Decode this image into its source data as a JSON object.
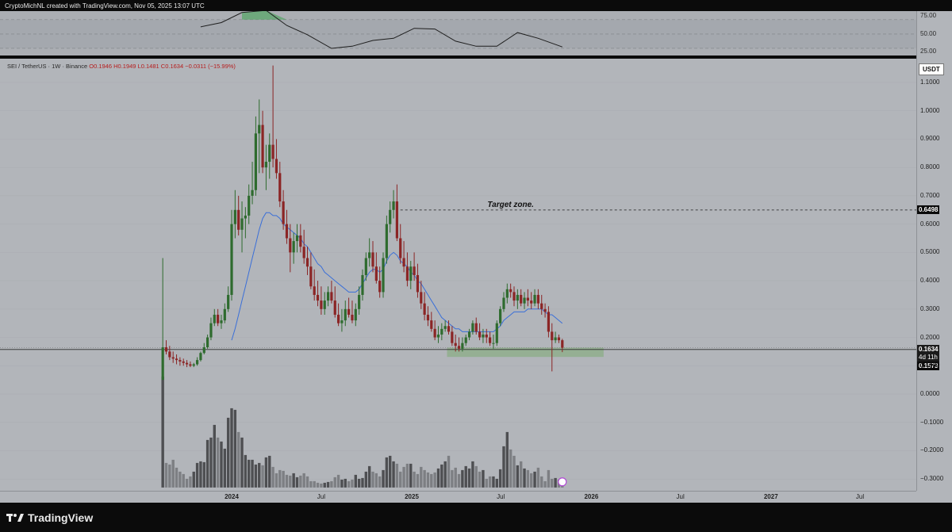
{
  "header": {
    "attribution": "CryptoMichNL created with TradingView.com, Nov 05, 2025 13:07 UTC"
  },
  "legend": {
    "symbol": "SEI / TetherUS · 1W · Binance",
    "o": "O0.1946",
    "h": "H0.1949",
    "l": "L0.1481",
    "c": "C0.1634",
    "chg": "−0.0311 (−15.99%)"
  },
  "currency_button": "USDT",
  "price_axis_ticks": [
    "1.1000",
    "1.0000",
    "0.9000",
    "0.8000",
    "0.7000",
    "0.6000",
    "0.5000",
    "0.4000",
    "0.3000",
    "0.2000",
    "0.1000",
    "0.0000",
    "−0.1000",
    "−0.2000",
    "−0.3000"
  ],
  "rsi_axis_ticks": [
    "75.00",
    "50.00",
    "25.00"
  ],
  "time_axis_ticks": [
    "2024",
    "Jul",
    "2025",
    "Jul",
    "2026",
    "Jul",
    "2027",
    "Jul"
  ],
  "tags": {
    "target": "0.6498",
    "last_price": "0.1634",
    "countdown": "4d 11h",
    "support": "0.1573"
  },
  "annotation": "Target zone.",
  "footer": {
    "brand": "TradingView"
  },
  "colors": {
    "bull": "#2e6b2e",
    "bear": "#8b2525",
    "ma": "#3a6fd8",
    "zone": "#8fae8c",
    "background": "#b2b5ba"
  },
  "chart_data": [
    {
      "type": "candlestick",
      "title": "SEI / TetherUS · 1W · Binance",
      "x": [
        "2023-08-14",
        "2023-08-21",
        "2023-08-28",
        "2023-09-04",
        "2023-09-11",
        "2023-09-18",
        "2023-09-25",
        "2023-10-02",
        "2023-10-09",
        "2023-10-16",
        "2023-10-23",
        "2023-10-30",
        "2023-11-06",
        "2023-11-13",
        "2023-11-20",
        "2023-11-27",
        "2023-12-04",
        "2023-12-11",
        "2023-12-18",
        "2023-12-25",
        "2024-01-01",
        "2024-01-08",
        "2024-01-15",
        "2024-01-22",
        "2024-01-29",
        "2024-02-05",
        "2024-02-12",
        "2024-02-19",
        "2024-02-26",
        "2024-03-04",
        "2024-03-11",
        "2024-03-18",
        "2024-03-25",
        "2024-04-01",
        "2024-04-08",
        "2024-04-15",
        "2024-04-22",
        "2024-04-29",
        "2024-05-06",
        "2024-05-13",
        "2024-05-20",
        "2024-05-27",
        "2024-06-03",
        "2024-06-10",
        "2024-06-17",
        "2024-06-24",
        "2024-07-01",
        "2024-07-08",
        "2024-07-15",
        "2024-07-22",
        "2024-07-29",
        "2024-08-05",
        "2024-08-12",
        "2024-08-19",
        "2024-08-26",
        "2024-09-02",
        "2024-09-09",
        "2024-09-16",
        "2024-09-23",
        "2024-09-30",
        "2024-10-07",
        "2024-10-14",
        "2024-10-21",
        "2024-10-28",
        "2024-11-04",
        "2024-11-11",
        "2024-11-18",
        "2024-11-25",
        "2024-12-02",
        "2024-12-09",
        "2024-12-16",
        "2024-12-23",
        "2024-12-30",
        "2025-01-06",
        "2025-01-13",
        "2025-01-20",
        "2025-01-27",
        "2025-02-03",
        "2025-02-10",
        "2025-02-17",
        "2025-02-24",
        "2025-03-03",
        "2025-03-10",
        "2025-03-17",
        "2025-03-24",
        "2025-03-31",
        "2025-04-07",
        "2025-04-14",
        "2025-04-21",
        "2025-04-28",
        "2025-05-05",
        "2025-05-12",
        "2025-05-19",
        "2025-05-26",
        "2025-06-02",
        "2025-06-09",
        "2025-06-16",
        "2025-06-23",
        "2025-06-30",
        "2025-07-07",
        "2025-07-14",
        "2025-07-21",
        "2025-07-28",
        "2025-08-04",
        "2025-08-11",
        "2025-08-18",
        "2025-08-25",
        "2025-09-01",
        "2025-09-08",
        "2025-09-15",
        "2025-09-22",
        "2025-09-29",
        "2025-10-06",
        "2025-10-13",
        "2025-10-20",
        "2025-10-27",
        "2025-11-03"
      ],
      "open": [
        0.05,
        0.165,
        0.15,
        0.13,
        0.125,
        0.12,
        0.115,
        0.11,
        0.105,
        0.1,
        0.105,
        0.12,
        0.145,
        0.165,
        0.2,
        0.25,
        0.28,
        0.25,
        0.26,
        0.3,
        0.35,
        0.6,
        0.65,
        0.58,
        0.62,
        0.63,
        0.7,
        0.72,
        0.92,
        0.95,
        0.8,
        0.82,
        0.88,
        0.83,
        0.78,
        0.68,
        0.6,
        0.55,
        0.5,
        0.54,
        0.56,
        0.52,
        0.48,
        0.45,
        0.38,
        0.35,
        0.33,
        0.3,
        0.33,
        0.36,
        0.33,
        0.28,
        0.25,
        0.26,
        0.3,
        0.28,
        0.26,
        0.3,
        0.35,
        0.42,
        0.48,
        0.5,
        0.45,
        0.4,
        0.36,
        0.48,
        0.6,
        0.65,
        0.68,
        0.55,
        0.48,
        0.45,
        0.4,
        0.45,
        0.42,
        0.36,
        0.32,
        0.28,
        0.26,
        0.23,
        0.2,
        0.21,
        0.23,
        0.24,
        0.22,
        0.18,
        0.17,
        0.16,
        0.18,
        0.2,
        0.22,
        0.25,
        0.22,
        0.2,
        0.21,
        0.2,
        0.18,
        0.18,
        0.25,
        0.3,
        0.34,
        0.37,
        0.36,
        0.33,
        0.35,
        0.32,
        0.34,
        0.33,
        0.32,
        0.35,
        0.32,
        0.3,
        0.29,
        0.22,
        0.19,
        0.2,
        0.19
      ],
      "high": [
        0.48,
        0.19,
        0.17,
        0.15,
        0.14,
        0.13,
        0.125,
        0.12,
        0.115,
        0.11,
        0.13,
        0.15,
        0.18,
        0.21,
        0.27,
        0.3,
        0.3,
        0.28,
        0.32,
        0.38,
        0.65,
        0.72,
        0.7,
        0.68,
        0.66,
        0.74,
        0.82,
        0.98,
        1.04,
        1.0,
        0.88,
        0.92,
        1.16,
        0.9,
        0.82,
        0.72,
        0.65,
        0.6,
        0.57,
        0.6,
        0.6,
        0.58,
        0.52,
        0.5,
        0.44,
        0.4,
        0.38,
        0.36,
        0.38,
        0.4,
        0.38,
        0.32,
        0.3,
        0.33,
        0.34,
        0.33,
        0.32,
        0.38,
        0.44,
        0.5,
        0.55,
        0.54,
        0.5,
        0.45,
        0.5,
        0.63,
        0.68,
        0.72,
        0.74,
        0.6,
        0.54,
        0.5,
        0.47,
        0.5,
        0.46,
        0.4,
        0.36,
        0.31,
        0.29,
        0.26,
        0.24,
        0.25,
        0.26,
        0.26,
        0.24,
        0.21,
        0.2,
        0.2,
        0.21,
        0.23,
        0.26,
        0.27,
        0.25,
        0.23,
        0.23,
        0.22,
        0.21,
        0.26,
        0.31,
        0.36,
        0.39,
        0.39,
        0.38,
        0.37,
        0.37,
        0.36,
        0.37,
        0.36,
        0.37,
        0.37,
        0.35,
        0.32,
        0.31,
        0.25,
        0.22,
        0.21,
        0.195
      ],
      "low": [
        0.05,
        0.14,
        0.12,
        0.11,
        0.105,
        0.1,
        0.1,
        0.095,
        0.095,
        0.095,
        0.1,
        0.115,
        0.14,
        0.16,
        0.19,
        0.24,
        0.24,
        0.23,
        0.25,
        0.29,
        0.33,
        0.55,
        0.56,
        0.5,
        0.55,
        0.6,
        0.67,
        0.7,
        0.78,
        0.78,
        0.72,
        0.76,
        0.8,
        0.76,
        0.66,
        0.58,
        0.53,
        0.43,
        0.46,
        0.5,
        0.5,
        0.46,
        0.42,
        0.37,
        0.33,
        0.31,
        0.28,
        0.28,
        0.31,
        0.32,
        0.27,
        0.24,
        0.22,
        0.24,
        0.27,
        0.25,
        0.24,
        0.28,
        0.33,
        0.4,
        0.45,
        0.43,
        0.39,
        0.34,
        0.34,
        0.46,
        0.57,
        0.62,
        0.54,
        0.46,
        0.43,
        0.38,
        0.37,
        0.4,
        0.34,
        0.3,
        0.26,
        0.24,
        0.22,
        0.19,
        0.18,
        0.19,
        0.22,
        0.21,
        0.17,
        0.15,
        0.15,
        0.15,
        0.17,
        0.19,
        0.21,
        0.21,
        0.19,
        0.18,
        0.18,
        0.17,
        0.16,
        0.17,
        0.24,
        0.29,
        0.32,
        0.34,
        0.31,
        0.3,
        0.31,
        0.3,
        0.31,
        0.3,
        0.31,
        0.3,
        0.28,
        0.27,
        0.2,
        0.08,
        0.18,
        0.18,
        0.148
      ],
      "close": [
        0.165,
        0.15,
        0.13,
        0.125,
        0.12,
        0.115,
        0.11,
        0.105,
        0.1,
        0.105,
        0.12,
        0.145,
        0.165,
        0.2,
        0.25,
        0.28,
        0.25,
        0.26,
        0.3,
        0.35,
        0.6,
        0.65,
        0.58,
        0.62,
        0.63,
        0.7,
        0.72,
        0.92,
        0.95,
        0.8,
        0.82,
        0.88,
        0.83,
        0.78,
        0.68,
        0.6,
        0.55,
        0.5,
        0.54,
        0.56,
        0.52,
        0.48,
        0.45,
        0.38,
        0.35,
        0.33,
        0.3,
        0.33,
        0.36,
        0.33,
        0.28,
        0.25,
        0.26,
        0.3,
        0.28,
        0.26,
        0.3,
        0.35,
        0.42,
        0.48,
        0.5,
        0.45,
        0.4,
        0.36,
        0.48,
        0.6,
        0.65,
        0.68,
        0.55,
        0.48,
        0.45,
        0.4,
        0.45,
        0.42,
        0.36,
        0.32,
        0.28,
        0.26,
        0.23,
        0.2,
        0.21,
        0.23,
        0.24,
        0.22,
        0.18,
        0.17,
        0.16,
        0.18,
        0.2,
        0.22,
        0.25,
        0.22,
        0.2,
        0.21,
        0.2,
        0.18,
        0.18,
        0.25,
        0.3,
        0.34,
        0.37,
        0.36,
        0.33,
        0.35,
        0.32,
        0.34,
        0.33,
        0.32,
        0.35,
        0.32,
        0.3,
        0.29,
        0.22,
        0.19,
        0.2,
        0.19,
        0.1634
      ],
      "ma": [
        null,
        null,
        null,
        null,
        null,
        null,
        null,
        null,
        null,
        null,
        null,
        null,
        null,
        null,
        null,
        null,
        null,
        null,
        null,
        null,
        0.19,
        0.23,
        0.28,
        0.33,
        0.38,
        0.43,
        0.48,
        0.53,
        0.58,
        0.62,
        0.64,
        0.64,
        0.63,
        0.63,
        0.62,
        0.6,
        0.59,
        0.58,
        0.57,
        0.56,
        0.55,
        0.53,
        0.52,
        0.5,
        0.48,
        0.46,
        0.45,
        0.43,
        0.42,
        0.41,
        0.4,
        0.39,
        0.38,
        0.37,
        0.36,
        0.36,
        0.36,
        0.37,
        0.39,
        0.41,
        0.43,
        0.44,
        0.44,
        0.43,
        0.44,
        0.47,
        0.49,
        0.5,
        0.49,
        0.47,
        0.46,
        0.45,
        0.43,
        0.42,
        0.4,
        0.39,
        0.37,
        0.35,
        0.33,
        0.31,
        0.29,
        0.27,
        0.26,
        0.25,
        0.24,
        0.23,
        0.23,
        0.22,
        0.22,
        0.22,
        0.22,
        0.22,
        0.22,
        0.22,
        0.22,
        0.22,
        0.22,
        0.23,
        0.24,
        0.26,
        0.27,
        0.28,
        0.29,
        0.29,
        0.29,
        0.29,
        0.3,
        0.3,
        0.3,
        0.3,
        0.3,
        0.29,
        0.28,
        0.28,
        0.27,
        0.26,
        0.25
      ],
      "volume": [
        140,
        31,
        29,
        35,
        25,
        20,
        17,
        11,
        14,
        20,
        31,
        33,
        32,
        60,
        63,
        79,
        63,
        58,
        49,
        88,
        100,
        98,
        70,
        63,
        41,
        35,
        35,
        29,
        31,
        28,
        38,
        40,
        26,
        18,
        22,
        21,
        16,
        15,
        18,
        13,
        15,
        18,
        14,
        8,
        8,
        6,
        5,
        6,
        7,
        8,
        13,
        16,
        10,
        11,
        8,
        10,
        16,
        11,
        12,
        20,
        27,
        20,
        18,
        14,
        22,
        38,
        40,
        33,
        30,
        20,
        26,
        30,
        30,
        20,
        17,
        26,
        22,
        19,
        17,
        19,
        24,
        29,
        33,
        40,
        22,
        25,
        17,
        22,
        27,
        24,
        33,
        27,
        20,
        22,
        11,
        14,
        14,
        11,
        23,
        52,
        70,
        48,
        40,
        28,
        33,
        24,
        22,
        18,
        20,
        25,
        14,
        8,
        22,
        11,
        12,
        10,
        12
      ],
      "y_range": [
        -0.33,
        1.18
      ],
      "scale": "linear"
    },
    {
      "type": "line",
      "title": "RSI",
      "x": [
        "2023-10-30",
        "2023-12-11",
        "2024-01-22",
        "2024-03-11",
        "2024-04-22",
        "2024-06-03",
        "2024-07-22",
        "2024-09-02",
        "2024-10-14",
        "2024-11-25",
        "2025-01-06",
        "2025-02-17",
        "2025-03-31",
        "2025-05-12",
        "2025-06-23",
        "2025-08-04",
        "2025-09-15",
        "2025-11-03"
      ],
      "y": [
        60,
        66,
        80,
        83,
        62,
        49,
        30,
        33,
        41,
        44,
        58,
        57,
        40,
        33,
        33,
        52,
        44,
        32
      ],
      "y_range": [
        20,
        82
      ],
      "levels": [
        70,
        50,
        30
      ]
    }
  ]
}
